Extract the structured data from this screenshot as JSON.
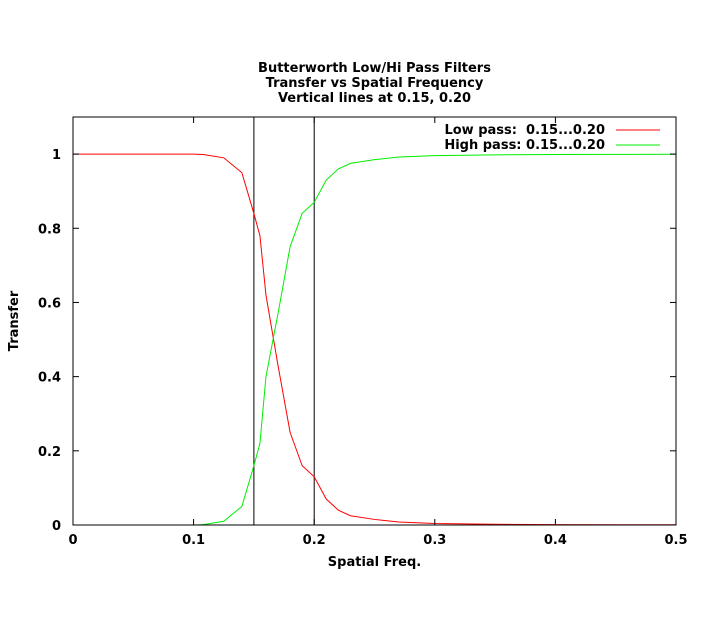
{
  "chart_data": {
    "type": "line",
    "title": [
      "Butterworth Low/Hi Pass Filters",
      "Transfer vs Spatial Frequency",
      "Vertical lines at 0.15, 0.20"
    ],
    "xlabel": "Spatial Freq.",
    "ylabel": "Transfer",
    "xlim": [
      0,
      0.5
    ],
    "ylim": [
      0,
      1.1
    ],
    "xticks": [
      0,
      0.1,
      0.2,
      0.3,
      0.4,
      0.5
    ],
    "xtick_labels": [
      "0",
      "0.1",
      "0.2",
      "0.3",
      "0.4",
      "0.5"
    ],
    "yticks": [
      0,
      0.2,
      0.4,
      0.6,
      0.8,
      1
    ],
    "ytick_labels": [
      "0",
      "0.2",
      "0.4",
      "0.6",
      "0.8",
      "1"
    ],
    "grid": false,
    "legend_position": "top-right",
    "vertical_lines": [
      0.15,
      0.2
    ],
    "x": [
      0,
      0.025,
      0.05,
      0.075,
      0.1,
      0.108,
      0.125,
      0.14,
      0.15,
      0.155,
      0.16,
      0.17,
      0.18,
      0.19,
      0.2,
      0.21,
      0.22,
      0.23,
      0.25,
      0.27,
      0.3,
      0.35,
      0.4,
      0.45,
      0.5
    ],
    "series": [
      {
        "name": "Low pass:  0.15...0.20",
        "color": "#ff0000",
        "values": [
          1,
          1,
          1,
          1,
          1,
          0.999,
          0.99,
          0.95,
          0.84,
          0.78,
          0.62,
          0.43,
          0.25,
          0.16,
          0.13,
          0.07,
          0.04,
          0.025,
          0.015,
          0.008,
          0.004,
          0.002,
          0.001,
          0.0008,
          0.0005
        ]
      },
      {
        "name": "High pass: 0.15...0.20",
        "color": "#00ee00",
        "values": [
          0,
          0,
          0,
          0,
          0,
          0.001,
          0.01,
          0.05,
          0.16,
          0.22,
          0.4,
          0.57,
          0.75,
          0.84,
          0.87,
          0.93,
          0.96,
          0.975,
          0.985,
          0.992,
          0.996,
          0.998,
          0.999,
          0.9992,
          0.9995
        ]
      }
    ]
  }
}
